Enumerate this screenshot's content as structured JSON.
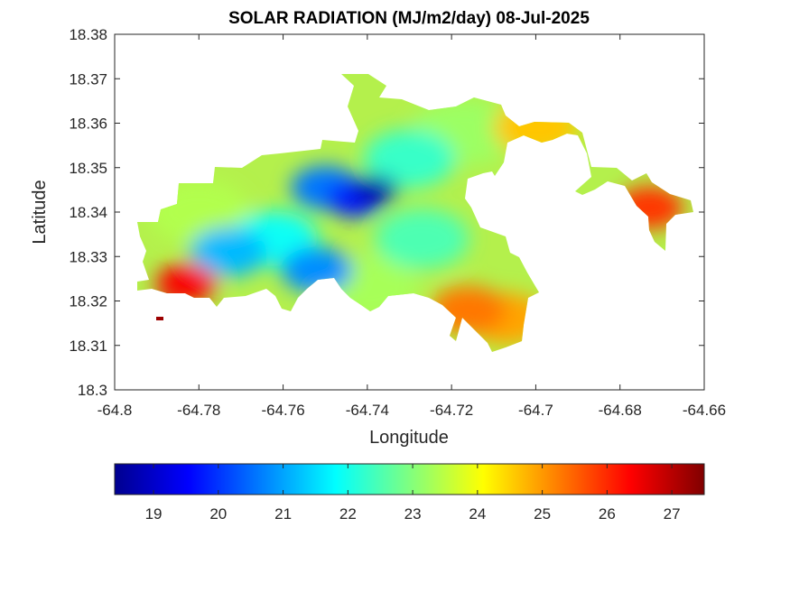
{
  "title": "SOLAR RADIATION (MJ/m2/day) 08-Jul-2025",
  "map": {
    "xlabel": "Longitude",
    "ylabel": "Latitude",
    "xlim": [
      -64.8,
      -64.66
    ],
    "ylim": [
      18.3,
      18.38
    ],
    "xticks": [
      "-64.8",
      "-64.78",
      "-64.76",
      "-64.74",
      "-64.72",
      "-64.7",
      "-64.68",
      "-64.66"
    ],
    "yticks": [
      "18.3",
      "18.31",
      "18.32",
      "18.33",
      "18.34",
      "18.35",
      "18.36",
      "18.37",
      "18.38"
    ],
    "grid": false,
    "background": "#ffffff"
  },
  "colorbar": {
    "colormap": "jet",
    "range": [
      18.4,
      27.5
    ],
    "ticks": [
      "19",
      "20",
      "21",
      "22",
      "23",
      "24",
      "25",
      "26",
      "27"
    ],
    "orientation": "horizontal"
  },
  "chart_data": {
    "type": "heatmap",
    "title": "SOLAR RADIATION (MJ/m2/day) 08-Jul-2025",
    "xlabel": "Longitude",
    "ylabel": "Latitude",
    "xlim": [
      -64.8,
      -64.66
    ],
    "ylim": [
      18.3,
      18.38
    ],
    "value_range": [
      18.4,
      27.5
    ],
    "colormap": "jet",
    "regions": [
      {
        "lon": -64.738,
        "lat": 18.345,
        "value": 18.8
      },
      {
        "lon": -64.743,
        "lat": 18.343,
        "value": 19.8
      },
      {
        "lon": -64.75,
        "lat": 18.3455,
        "value": 20.6
      },
      {
        "lon": -64.752,
        "lat": 18.327,
        "value": 20.8
      },
      {
        "lon": -64.773,
        "lat": 18.331,
        "value": 21.2
      },
      {
        "lon": -64.762,
        "lat": 18.334,
        "value": 21.9
      },
      {
        "lon": -64.73,
        "lat": 18.352,
        "value": 22.3
      },
      {
        "lon": -64.727,
        "lat": 18.334,
        "value": 22.5
      },
      {
        "lon": -64.78,
        "lat": 18.34,
        "value": 23.4
      },
      {
        "lon": -64.74,
        "lat": 18.323,
        "value": 23.3
      },
      {
        "lon": -64.717,
        "lat": 18.358,
        "value": 23.2
      },
      {
        "lon": -64.7,
        "lat": 18.359,
        "value": 24.6
      },
      {
        "lon": -64.707,
        "lat": 18.316,
        "value": 24.9
      },
      {
        "lon": -64.716,
        "lat": 18.318,
        "value": 25.3
      },
      {
        "lon": -64.673,
        "lat": 18.341,
        "value": 25.9
      },
      {
        "lon": -64.783,
        "lat": 18.324,
        "value": 26.4
      },
      {
        "lon": -64.7885,
        "lat": 18.3155,
        "value": 27.3
      }
    ]
  }
}
